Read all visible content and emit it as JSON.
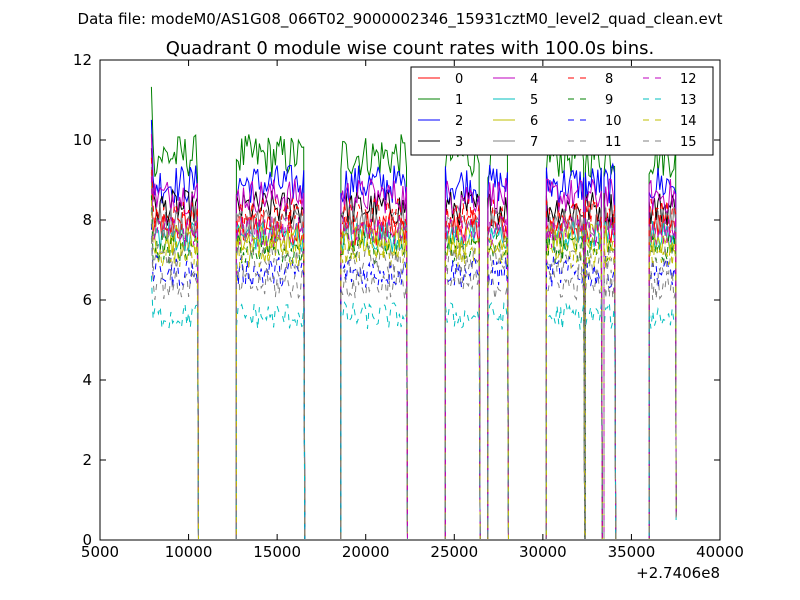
{
  "figure": {
    "suptitle": "Data file: modeM0/AS1G08_066T02_9000002346_15931cztM0_level2_quad_clean.evt"
  },
  "chart_data": {
    "type": "line",
    "title": "Quadrant 0 module wise count rates with 100.0s bins.",
    "xlabel": "",
    "ylabel": "",
    "xlim": [
      5000,
      40000
    ],
    "ylim": [
      0,
      12
    ],
    "x_offset_label": "+2.7406e8",
    "xticks": [
      5000,
      10000,
      15000,
      20000,
      25000,
      30000,
      35000,
      40000
    ],
    "xtick_labels": [
      "5000",
      "10000",
      "15000",
      "20000",
      "25000",
      "30000",
      "35000",
      "40000"
    ],
    "yticks": [
      0,
      2,
      4,
      6,
      8,
      10,
      12
    ],
    "ytick_labels": [
      "0",
      "2",
      "4",
      "6",
      "8",
      "10",
      "12"
    ],
    "grid": false,
    "legend_position": "top-right",
    "legend_columns": 4,
    "segments": [
      [
        7900,
        10500
      ],
      [
        12700,
        16500
      ],
      [
        18600,
        22300
      ],
      [
        24500,
        26400
      ],
      [
        26900,
        28000
      ],
      [
        30200,
        32300
      ],
      [
        32400,
        33300
      ],
      [
        33450,
        34050
      ],
      [
        36000,
        37500
      ]
    ],
    "segment_step": 100,
    "series": [
      {
        "name": "0",
        "color": "#ff0000",
        "dash": "solid",
        "level": 7.8,
        "noise": 0.45
      },
      {
        "name": "1",
        "color": "#008000",
        "dash": "solid",
        "level": 9.6,
        "noise": 0.55
      },
      {
        "name": "2",
        "color": "#0000ff",
        "dash": "solid",
        "level": 8.9,
        "noise": 0.5
      },
      {
        "name": "3",
        "color": "#000000",
        "dash": "solid",
        "level": 8.3,
        "noise": 0.45
      },
      {
        "name": "4",
        "color": "#bf00bf",
        "dash": "solid",
        "level": 8.6,
        "noise": 0.45
      },
      {
        "name": "5",
        "color": "#00bfbf",
        "dash": "solid",
        "level": 7.6,
        "noise": 0.4
      },
      {
        "name": "6",
        "color": "#bfbf00",
        "dash": "solid",
        "level": 7.5,
        "noise": 0.4
      },
      {
        "name": "7",
        "color": "#808080",
        "dash": "solid",
        "level": 7.9,
        "noise": 0.45
      },
      {
        "name": "8",
        "color": "#ff0000",
        "dash": "dashed",
        "level": 8.1,
        "noise": 0.45
      },
      {
        "name": "9",
        "color": "#008000",
        "dash": "dashed",
        "level": 7.3,
        "noise": 0.4
      },
      {
        "name": "10",
        "color": "#0000ff",
        "dash": "dashed",
        "level": 6.7,
        "noise": 0.4
      },
      {
        "name": "11",
        "color": "#808080",
        "dash": "dashed",
        "level": 7.0,
        "noise": 0.4
      },
      {
        "name": "12",
        "color": "#bf00bf",
        "dash": "dashed",
        "level": 7.7,
        "noise": 0.4
      },
      {
        "name": "13",
        "color": "#00bfbf",
        "dash": "dashed",
        "level": 5.6,
        "noise": 0.35
      },
      {
        "name": "14",
        "color": "#bfbf00",
        "dash": "dashed",
        "level": 7.2,
        "noise": 0.4
      },
      {
        "name": "15",
        "color": "#808080",
        "dash": "dashed",
        "level": 6.4,
        "noise": 0.4
      }
    ]
  }
}
